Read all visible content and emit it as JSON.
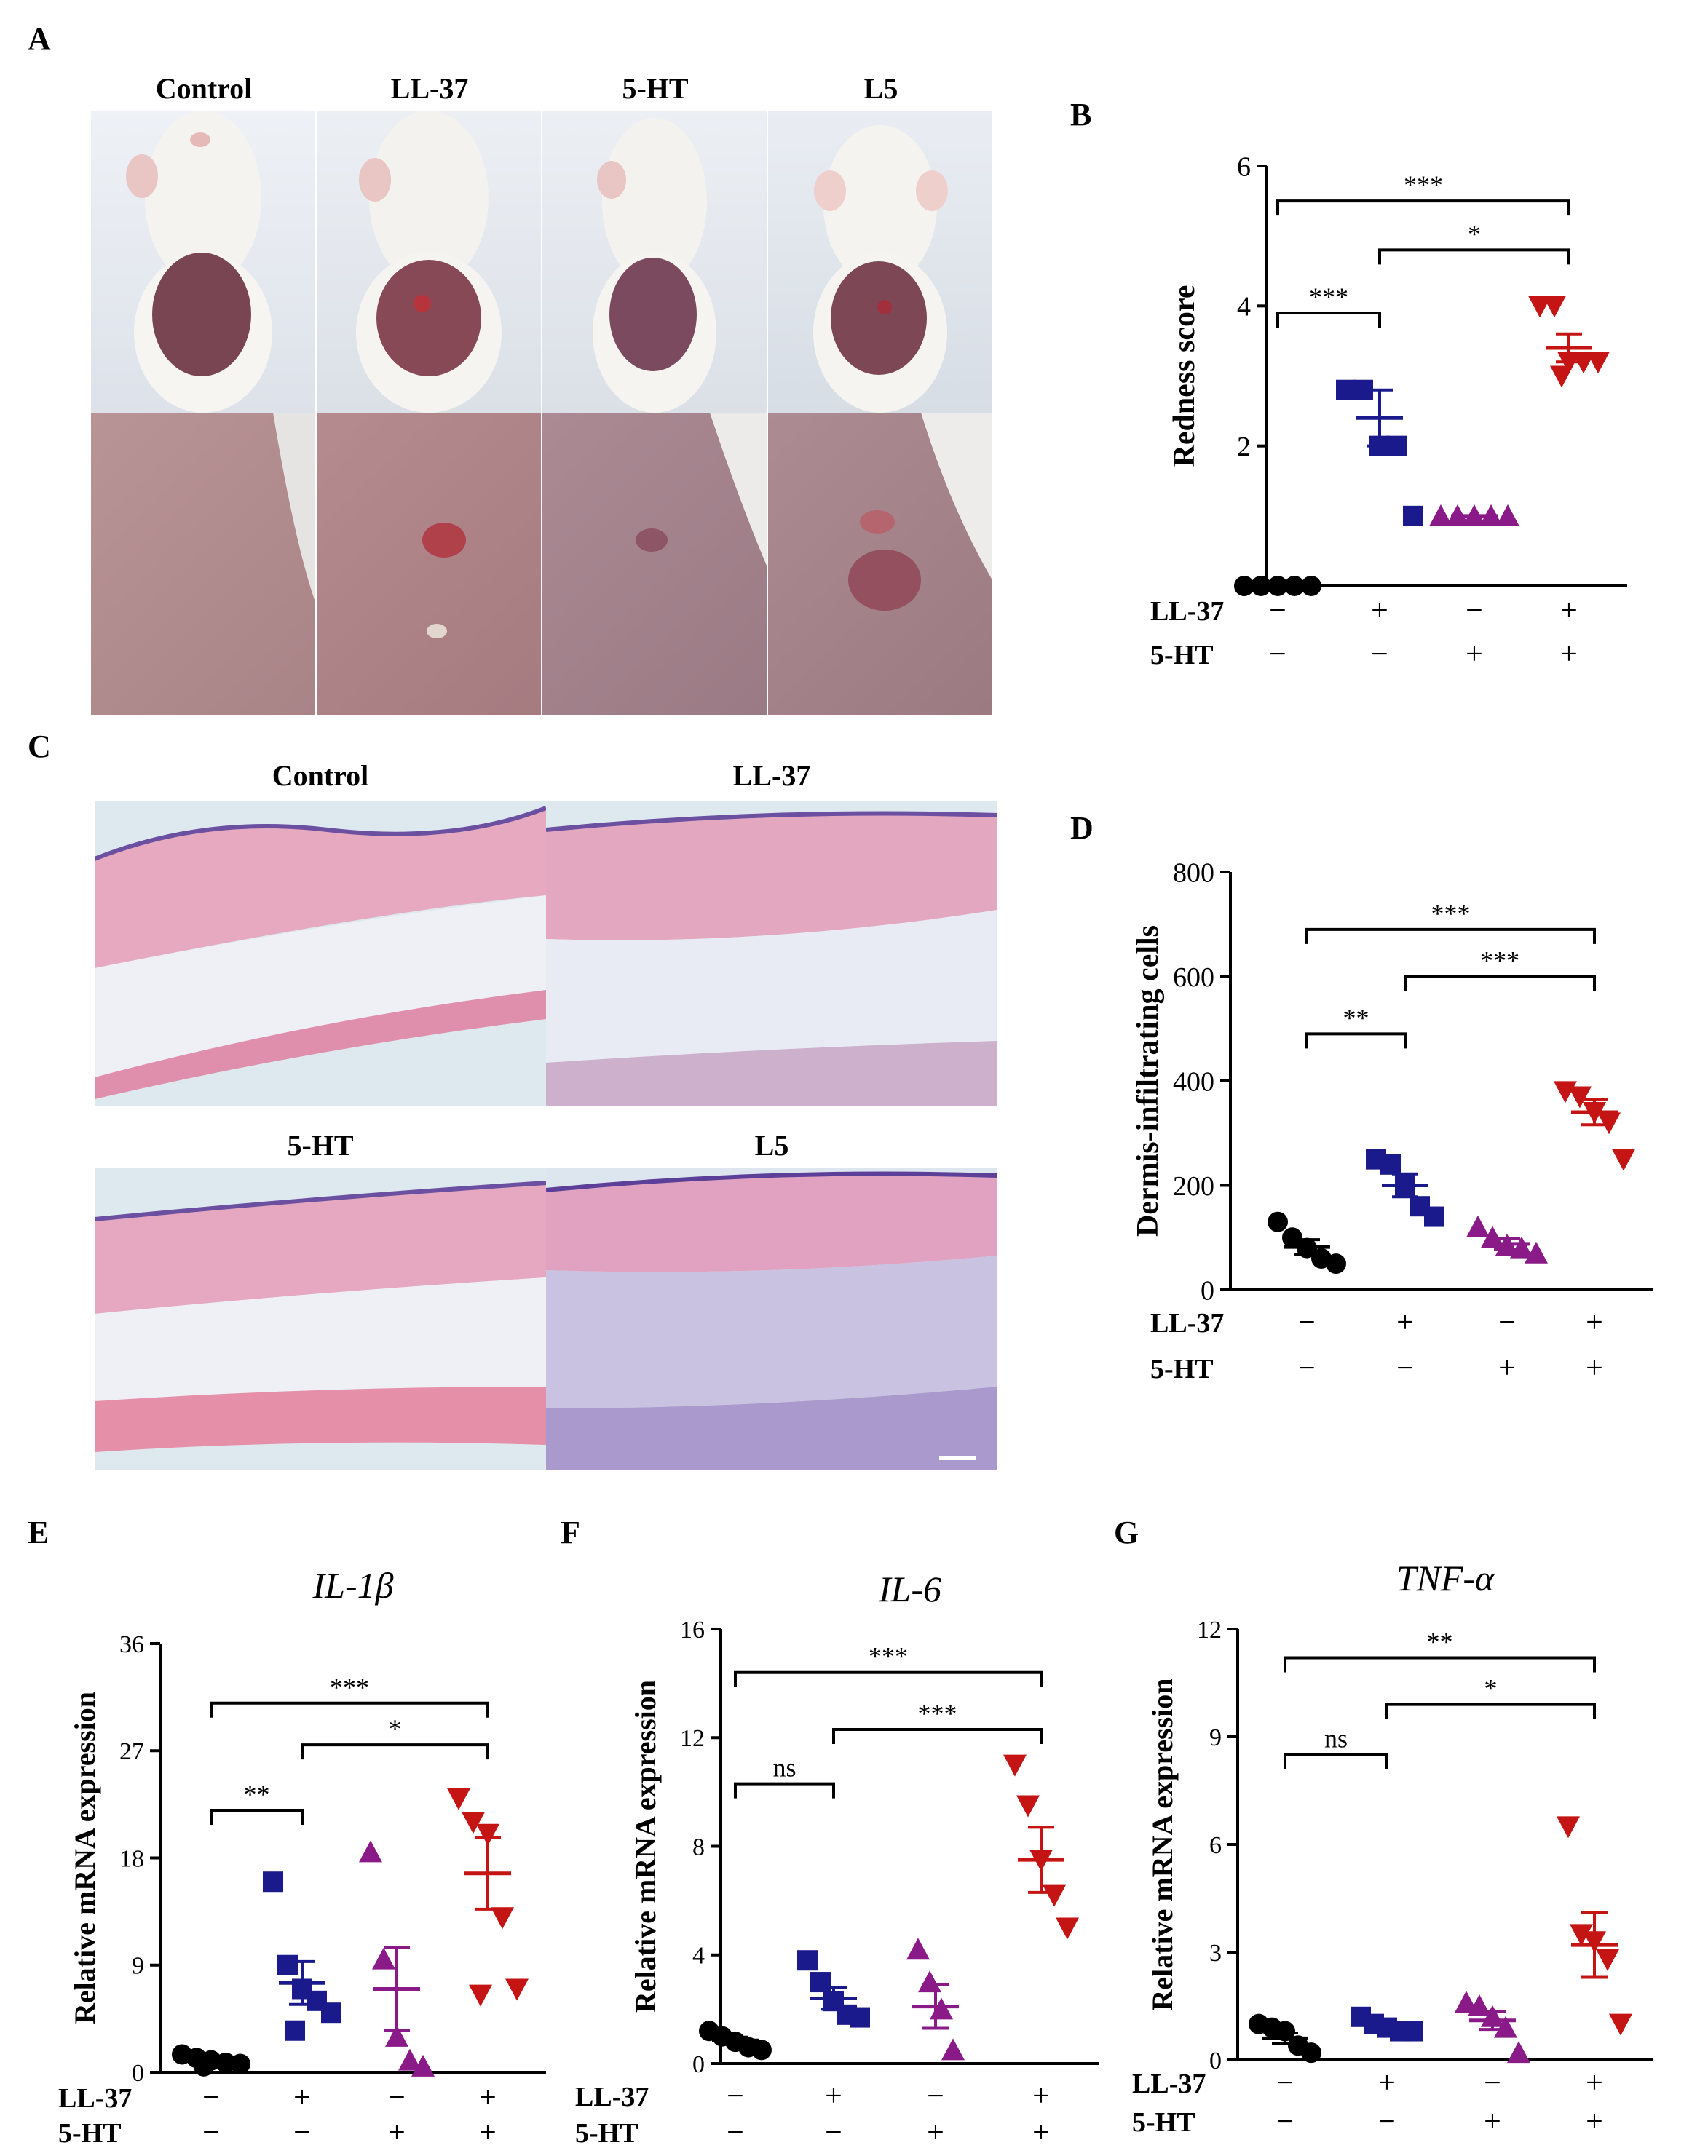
{
  "panel_labels": {
    "a": "A",
    "b": "B",
    "c": "C",
    "d": "D",
    "e": "E",
    "f": "F",
    "g": "G"
  },
  "photo_titles_A": [
    "Control",
    "LL-37",
    "5-HT",
    "L5"
  ],
  "histo_titles_C": [
    "Control",
    "LL-37",
    "5-HT",
    "L5"
  ],
  "colors": {
    "control": "#000000",
    "ll37": "#1a1a8c",
    "5ht": "#8b1a89",
    "l5": "#c41414"
  },
  "condition_rows": {
    "ll37_label": "LL-37",
    "ht_label": "5-HT",
    "ll37_signs": [
      "−",
      "+",
      "−",
      "+"
    ],
    "ht_signs": [
      "−",
      "−",
      "+",
      "+"
    ]
  },
  "chart_data": [
    {
      "id": "B",
      "type": "scatter",
      "title": "",
      "ylabel": "Redness score",
      "ylim": [
        0,
        6
      ],
      "yticks": [
        "0",
        "2",
        "4",
        "6"
      ],
      "groups": [
        {
          "values": [
            0,
            0,
            0,
            0,
            0
          ],
          "mean": 0,
          "sem": 0,
          "marker": "circle"
        },
        {
          "values": [
            2.8,
            2.8,
            2.0,
            2.0,
            1.0
          ],
          "mean": 2.4,
          "sem": 0.4,
          "marker": "square"
        },
        {
          "values": [
            1,
            1,
            1,
            1,
            1
          ],
          "mean": 1.0,
          "sem": 0,
          "marker": "triangle-up"
        },
        {
          "values": [
            4.0,
            4.0,
            3.2,
            3.2,
            3.2,
            3.0
          ],
          "mean": 3.4,
          "sem": 0.2,
          "marker": "triangle-down"
        }
      ],
      "significance": [
        {
          "from": 0,
          "to": 1,
          "label": "***",
          "y": 3.9
        },
        {
          "from": 1,
          "to": 3,
          "label": "*",
          "y": 4.8
        },
        {
          "from": 0,
          "to": 3,
          "label": "***",
          "y": 5.5
        }
      ]
    },
    {
      "id": "D",
      "type": "scatter",
      "title": "",
      "ylabel": "Dermis-infiltrating cells",
      "ylim": [
        0,
        800
      ],
      "yticks": [
        "0",
        "200",
        "400",
        "600",
        "800"
      ],
      "groups": [
        {
          "values": [
            130,
            100,
            80,
            60,
            50
          ],
          "mean": 82,
          "sem": 14,
          "marker": "circle"
        },
        {
          "values": [
            250,
            240,
            200,
            160,
            140
          ],
          "mean": 200,
          "sem": 22,
          "marker": "square"
        },
        {
          "values": [
            120,
            100,
            85,
            80,
            70
          ],
          "mean": 88,
          "sem": 10,
          "marker": "triangle-up"
        },
        {
          "values": [
            380,
            370,
            340,
            320,
            250
          ],
          "mean": 340,
          "sem": 24,
          "marker": "triangle-down"
        }
      ],
      "significance": [
        {
          "from": 0,
          "to": 1,
          "label": "**",
          "y": 490
        },
        {
          "from": 1,
          "to": 3,
          "label": "***",
          "y": 600
        },
        {
          "from": 0,
          "to": 3,
          "label": "***",
          "y": 690
        }
      ]
    },
    {
      "id": "E",
      "type": "scatter",
      "title": "IL-1β",
      "ylabel": "Relative mRNA expression",
      "ylim": [
        0,
        36
      ],
      "yticks": [
        "0",
        "9",
        "18",
        "27",
        "36"
      ],
      "groups": [
        {
          "values": [
            1.5,
            1.2,
            1.0,
            0.8,
            0.7,
            0.5
          ],
          "mean": 1.0,
          "sem": 0.2,
          "marker": "circle"
        },
        {
          "values": [
            16,
            9,
            7,
            6,
            5,
            3.5
          ],
          "mean": 7.5,
          "sem": 1.8,
          "marker": "square"
        },
        {
          "values": [
            18.5,
            9.5,
            3,
            1,
            0.5
          ],
          "mean": 7,
          "sem": 3.5,
          "marker": "triangle-up"
        },
        {
          "values": [
            23,
            21,
            20,
            13,
            7,
            6.5
          ],
          "mean": 16.7,
          "sem": 3.0,
          "marker": "triangle-down"
        }
      ],
      "significance": [
        {
          "from": 0,
          "to": 1,
          "label": "**",
          "y": 22
        },
        {
          "from": 1,
          "to": 3,
          "label": "*",
          "y": 27.5
        },
        {
          "from": 0,
          "to": 3,
          "label": "***",
          "y": 31
        }
      ]
    },
    {
      "id": "F",
      "type": "scatter",
      "title": "IL-6",
      "ylabel": "Relative mRNA expression",
      "ylim": [
        0,
        16
      ],
      "yticks": [
        "0",
        "4",
        "8",
        "12",
        "16"
      ],
      "groups": [
        {
          "values": [
            1.2,
            1.0,
            0.8,
            0.6,
            0.5
          ],
          "mean": 0.85,
          "sem": 0.12,
          "marker": "circle"
        },
        {
          "values": [
            3.8,
            3.0,
            2.3,
            1.8,
            1.7
          ],
          "mean": 2.4,
          "sem": 0.4,
          "marker": "square"
        },
        {
          "values": [
            4.2,
            3.0,
            2.0,
            0.5
          ],
          "mean": 2.1,
          "sem": 0.8,
          "marker": "triangle-up"
        },
        {
          "values": [
            11,
            9.5,
            7.5,
            6.2,
            5.0
          ],
          "mean": 7.5,
          "sem": 1.2,
          "marker": "triangle-down"
        }
      ],
      "significance": [
        {
          "from": 0,
          "to": 1,
          "label": "ns",
          "y": 10.3
        },
        {
          "from": 1,
          "to": 3,
          "label": "***",
          "y": 12.3
        },
        {
          "from": 0,
          "to": 3,
          "label": "***",
          "y": 14.4
        }
      ]
    },
    {
      "id": "G",
      "type": "scatter",
      "title": "TNF-α",
      "ylabel": "Relative mRNA expression",
      "ylim": [
        0,
        12
      ],
      "yticks": [
        "0",
        "3",
        "6",
        "9",
        "12"
      ],
      "groups": [
        {
          "values": [
            1.0,
            0.9,
            0.8,
            0.4,
            0.2
          ],
          "mean": 0.6,
          "sem": 0.15,
          "marker": "circle"
        },
        {
          "values": [
            1.2,
            1.0,
            0.9,
            0.8,
            0.8
          ],
          "mean": 0.95,
          "sem": 0.1,
          "marker": "square"
        },
        {
          "values": [
            1.6,
            1.5,
            1.2,
            0.9,
            0.2
          ],
          "mean": 1.1,
          "sem": 0.25,
          "marker": "triangle-up"
        },
        {
          "values": [
            6.5,
            3.5,
            3.3,
            2.8,
            1.0
          ],
          "mean": 3.2,
          "sem": 0.9,
          "marker": "triangle-down"
        }
      ],
      "significance": [
        {
          "from": 0,
          "to": 1,
          "label": "ns",
          "y": 8.5
        },
        {
          "from": 1,
          "to": 3,
          "label": "*",
          "y": 9.9
        },
        {
          "from": 0,
          "to": 3,
          "label": "**",
          "y": 11.2
        }
      ]
    }
  ]
}
